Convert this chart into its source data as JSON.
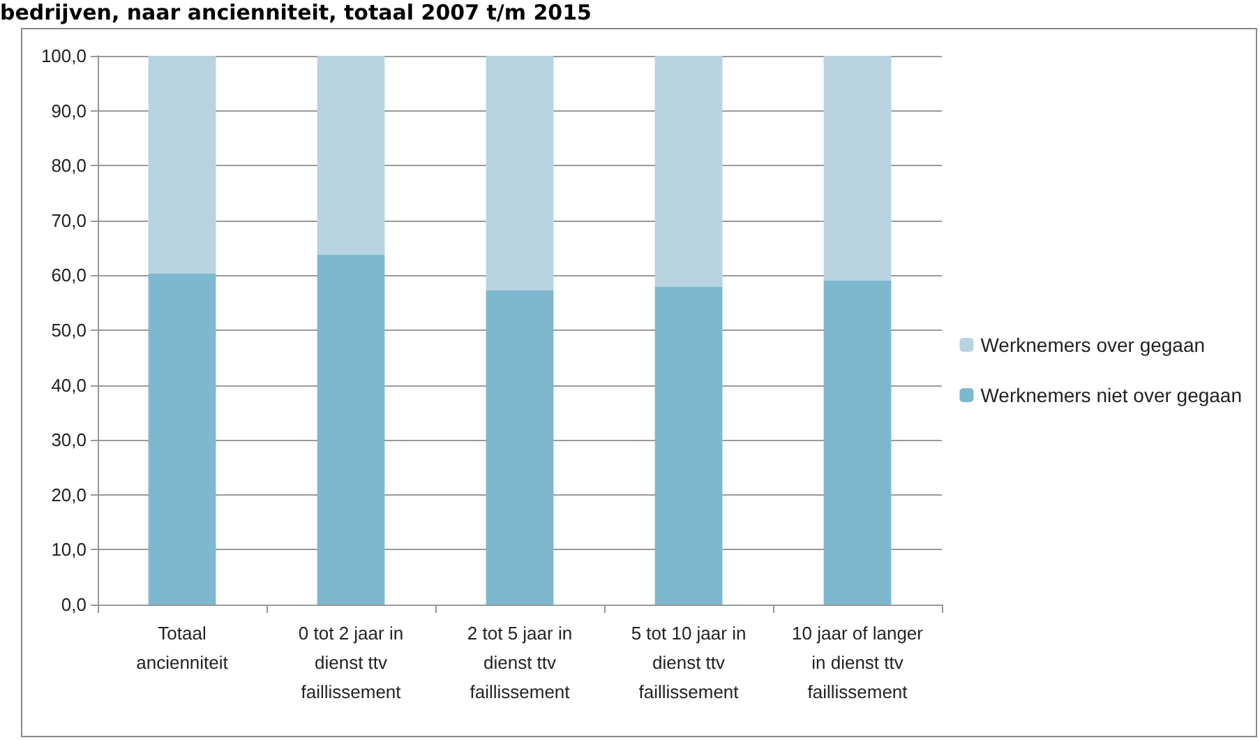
{
  "chart_data": {
    "type": "bar",
    "stacked": true,
    "title": "bedrijven, naar ancienniteit, totaal 2007 t/m 2015",
    "categories": [
      "Totaal\nancienniteit",
      "0 tot 2 jaar in\ndienst ttv\nfaillissement",
      "2 tot 5 jaar in\ndienst ttv\nfaillissement",
      "5 tot 10 jaar in\ndienst ttv\nfaillissement",
      "10 jaar of langer\nin dienst ttv\nfaillissement"
    ],
    "series": [
      {
        "name": "Werknemers niet over gegaan",
        "color": "#7eb8cf",
        "values": [
          60.3,
          63.8,
          57.3,
          57.9,
          59.1
        ]
      },
      {
        "name": "Werknemers over gegaan",
        "color": "#b7d4e0",
        "values": [
          39.7,
          36.2,
          42.7,
          42.1,
          40.9
        ]
      }
    ],
    "ylim": [
      0,
      100
    ],
    "yticks": [
      {
        "value": 0,
        "label": "0,0"
      },
      {
        "value": 10,
        "label": "10,0"
      },
      {
        "value": 20,
        "label": "20,0"
      },
      {
        "value": 30,
        "label": "30,0"
      },
      {
        "value": 40,
        "label": "40,0"
      },
      {
        "value": 50,
        "label": "50,0"
      },
      {
        "value": 60,
        "label": "60,0"
      },
      {
        "value": 70,
        "label": "70,0"
      },
      {
        "value": 80,
        "label": "80,0"
      },
      {
        "value": 90,
        "label": "90,0"
      },
      {
        "value": 100,
        "label": "100,0"
      }
    ],
    "grid": "y",
    "legend": "right"
  }
}
